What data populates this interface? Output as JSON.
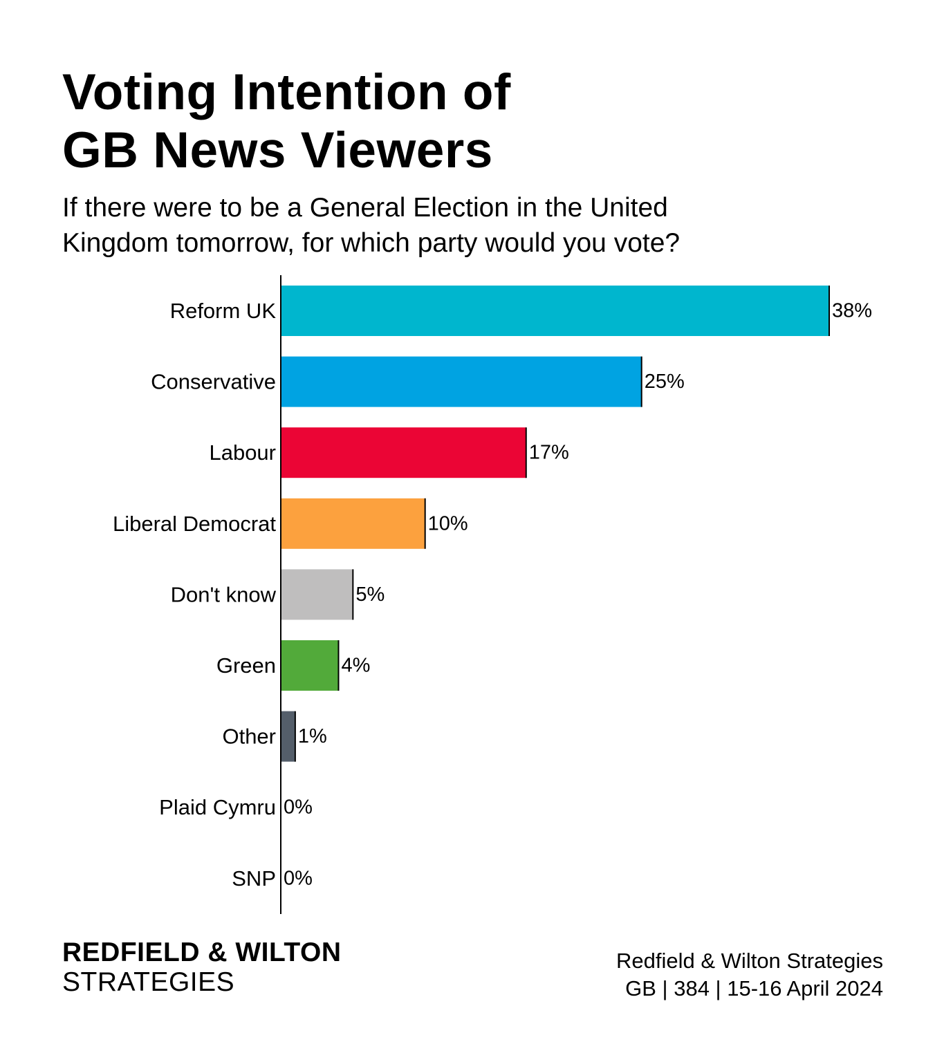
{
  "title": {
    "line1": "Voting Intention of",
    "line2": "GB News Viewers"
  },
  "subtitle": {
    "line1": "If there were to be a General Election in the United",
    "line2": "Kingdom tomorrow, for which party would you vote?"
  },
  "brand": {
    "line1": "REDFIELD & WILTON",
    "line2": "STRATEGIES"
  },
  "source": {
    "line1": "Redfield & Wilton Strategies",
    "line2": "GB | 384 | 15-16 April 2024"
  },
  "chart_data": {
    "type": "bar",
    "orientation": "horizontal",
    "title": "Voting Intention of GB News Viewers",
    "xlabel": "",
    "ylabel": "",
    "xlim": [
      0,
      38
    ],
    "grid": false,
    "categories": [
      "Reform UK",
      "Conservative",
      "Labour",
      "Liberal Democrat",
      "Don't know",
      "Green",
      "Other",
      "Plaid Cymru",
      "SNP"
    ],
    "values": [
      38,
      25,
      17,
      10,
      5,
      4,
      1,
      0,
      0
    ],
    "value_labels": [
      "38%",
      "25%",
      "17%",
      "10%",
      "5%",
      "4%",
      "1%",
      "0%",
      "0%"
    ],
    "colors": [
      "#00B6CE",
      "#00A3E2",
      "#EB0535",
      "#FCA13E",
      "#BFBEBE",
      "#52AA3A",
      "#545E6A",
      "#008142",
      "#FDF38E"
    ]
  }
}
